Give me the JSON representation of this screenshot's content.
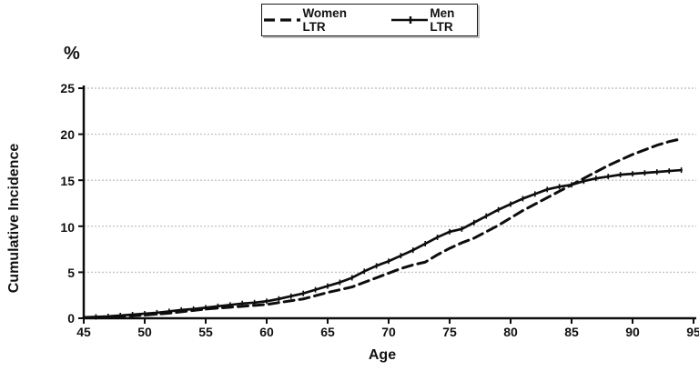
{
  "figure": {
    "percent_label": "%",
    "y_axis_title": "Cumulative Incidence",
    "x_axis_title": "Age",
    "background_color": "#ffffff",
    "line_color": "#0d0d0d",
    "gridline_color": "#c4c4c4"
  },
  "legend": {
    "items": [
      {
        "label": "Women LTR",
        "line_style": "dashed"
      },
      {
        "label": "Men LTR",
        "line_style": "solid-cross"
      }
    ]
  },
  "chart_data": {
    "type": "line",
    "title": "",
    "xlabel": "Age",
    "ylabel": "Cumulative Incidence (%)",
    "xlim": [
      45,
      95
    ],
    "ylim": [
      0,
      25
    ],
    "x_ticks": [
      "45",
      "50",
      "55",
      "60",
      "65",
      "70",
      "75",
      "80",
      "85",
      "90",
      "95"
    ],
    "y_ticks": [
      "0",
      "5",
      "10",
      "15",
      "20",
      "25"
    ],
    "grid": "horizontal-dotted",
    "legend_position": "top-center",
    "x": [
      45,
      46,
      47,
      48,
      49,
      50,
      51,
      52,
      53,
      54,
      55,
      56,
      57,
      58,
      59,
      60,
      61,
      62,
      63,
      64,
      65,
      66,
      67,
      68,
      69,
      70,
      71,
      72,
      73,
      74,
      75,
      76,
      77,
      78,
      79,
      80,
      81,
      82,
      83,
      84,
      85,
      86,
      87,
      88,
      89,
      90,
      91,
      92,
      93,
      94
    ],
    "series": [
      {
        "name": "Women LTR",
        "line": "dashed",
        "marker": "none",
        "color": "#0d0d0d",
        "values": [
          0.05,
          0.1,
          0.15,
          0.2,
          0.28,
          0.35,
          0.45,
          0.55,
          0.7,
          0.85,
          1.0,
          1.1,
          1.2,
          1.3,
          1.4,
          1.5,
          1.7,
          1.9,
          2.1,
          2.45,
          2.8,
          3.1,
          3.4,
          3.9,
          4.4,
          4.9,
          5.4,
          5.8,
          6.1,
          6.9,
          7.6,
          8.2,
          8.7,
          9.4,
          10.1,
          10.9,
          11.7,
          12.4,
          13.1,
          13.8,
          14.5,
          15.2,
          15.9,
          16.6,
          17.2,
          17.8,
          18.3,
          18.8,
          19.2,
          19.5
        ]
      },
      {
        "name": "Men LTR",
        "line": "solid",
        "marker": "cross",
        "color": "#0d0d0d",
        "values": [
          0.1,
          0.15,
          0.2,
          0.3,
          0.4,
          0.5,
          0.6,
          0.75,
          0.9,
          1.0,
          1.15,
          1.3,
          1.45,
          1.6,
          1.7,
          1.85,
          2.1,
          2.4,
          2.7,
          3.1,
          3.5,
          3.9,
          4.4,
          5.1,
          5.7,
          6.2,
          6.8,
          7.4,
          8.1,
          8.8,
          9.4,
          9.7,
          10.4,
          11.1,
          11.8,
          12.4,
          13.0,
          13.5,
          14.0,
          14.3,
          14.5,
          14.9,
          15.2,
          15.4,
          15.6,
          15.7,
          15.8,
          15.9,
          16.0,
          16.1
        ]
      }
    ]
  }
}
